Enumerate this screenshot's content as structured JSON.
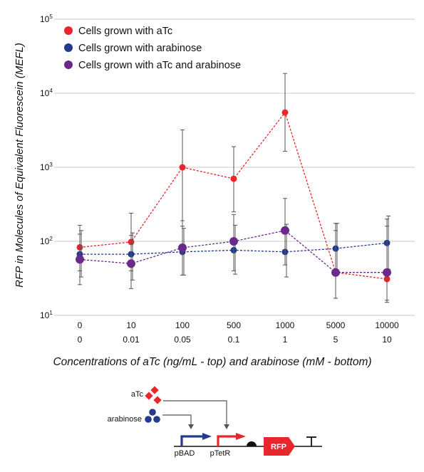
{
  "chart_data": {
    "type": "line",
    "ylabel": "RFP in Molecules of Equivalent Fluorescein (MEFL)",
    "xlabel": "Concentrations of aTc (ng/mL - top) and arabinose (mM - bottom)",
    "y_scale": "log",
    "ylim": [
      10,
      100000
    ],
    "y_ticks": [
      {
        "value": 100000,
        "base": "10",
        "exp": "5"
      },
      {
        "value": 10000,
        "base": "10",
        "exp": "4"
      },
      {
        "value": 1000,
        "base": "10",
        "exp": "3"
      },
      {
        "value": 100,
        "base": "10",
        "exp": "2"
      },
      {
        "value": 10,
        "base": "10",
        "exp": "1"
      }
    ],
    "grid": "horizontal",
    "legend_position": "top-left",
    "categories_top": [
      "0",
      "10",
      "100",
      "500",
      "1000",
      "5000",
      "10000"
    ],
    "categories_bottom": [
      "0",
      "0.01",
      "0.05",
      "0.1",
      "1",
      "5",
      "10"
    ],
    "series": [
      {
        "name": "Cells grown with aTc",
        "color": "#e8262b",
        "marker_size": "small",
        "values": [
          83,
          98,
          1000,
          700,
          5500,
          38,
          31
        ],
        "err_low": [
          40,
          40,
          160,
          250,
          1650,
          17,
          15
        ],
        "err_high": [
          165,
          240,
          3200,
          1900,
          18500,
          175,
          200
        ]
      },
      {
        "name": "Cells grown with arabinose",
        "color": "#233a8f",
        "marker_size": "small",
        "values": [
          67,
          67,
          72,
          76,
          72,
          80,
          95
        ],
        "err_low": [
          33,
          30,
          35,
          36,
          33,
          38,
          42
        ],
        "err_high": [
          140,
          130,
          150,
          165,
          170,
          175,
          220
        ]
      },
      {
        "name": "Cells grown with aTc and arabinose",
        "color": "#6a2a8c",
        "marker_size": "large",
        "values": [
          57,
          50,
          82,
          100,
          140,
          38,
          38
        ],
        "err_low": [
          26,
          23,
          35,
          40,
          48,
          17,
          16
        ],
        "err_high": [
          125,
          120,
          190,
          230,
          380,
          140,
          160
        ]
      }
    ]
  },
  "diagram": {
    "inducer_atc": "aTc",
    "inducer_arabinose": "arabinose",
    "promoter_bad": "pBAD",
    "promoter_tetr": "pTetR",
    "gene_label": "RFP",
    "colors": {
      "atc": "#e8262b",
      "arabinose": "#233a8f",
      "pbad": "#233a8f",
      "ptetr": "#e8262b",
      "rfp": "#e8262b"
    }
  }
}
